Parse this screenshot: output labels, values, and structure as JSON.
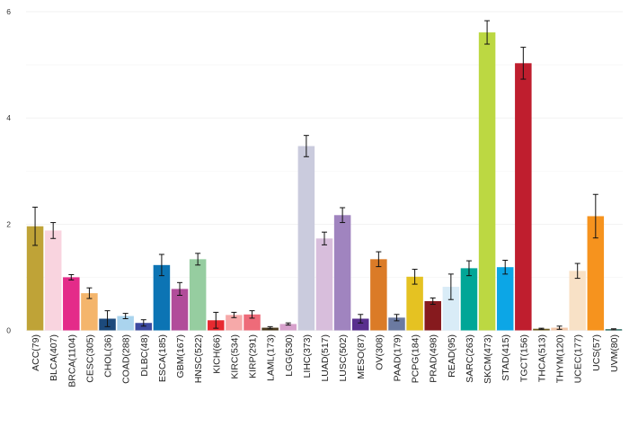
{
  "chart_data": {
    "type": "bar",
    "title": "",
    "xlabel": "",
    "ylabel": "",
    "ylim": [
      0,
      6.2
    ],
    "yticks": [
      0,
      2,
      4,
      6
    ],
    "grid": true,
    "legend": "none",
    "categories": [
      "ACC(79)",
      "BLCA(407)",
      "BRCA(1104)",
      "CESC(305)",
      "CHOL(36)",
      "COAD(288)",
      "DLBC(48)",
      "ESCA(185)",
      "GBM(167)",
      "HNSC(522)",
      "KICH(66)",
      "KIRC(534)",
      "KIRP(291)",
      "LAML(173)",
      "LGG(530)",
      "LIHC(373)",
      "LUAD(517)",
      "LUSC(502)",
      "MESO(87)",
      "OV(308)",
      "PAAD(179)",
      "PCPG(184)",
      "PRAD(498)",
      "READ(95)",
      "SARC(263)",
      "SKCM(473)",
      "STAD(415)",
      "TGCT(156)",
      "THCA(513)",
      "THYM(120)",
      "UCEC(177)",
      "UCS(57)",
      "UVM(80)"
    ],
    "values": [
      1.96,
      1.88,
      1.0,
      0.7,
      0.22,
      0.27,
      0.14,
      1.23,
      0.78,
      1.34,
      0.19,
      0.29,
      0.3,
      0.05,
      0.12,
      3.47,
      1.73,
      2.17,
      0.22,
      1.34,
      0.24,
      1.01,
      0.55,
      0.82,
      1.17,
      5.61,
      1.19,
      5.03,
      0.03,
      0.05,
      1.12,
      2.15,
      0.02
    ],
    "errors": [
      0.36,
      0.15,
      0.05,
      0.1,
      0.15,
      0.05,
      0.06,
      0.2,
      0.12,
      0.11,
      0.15,
      0.05,
      0.07,
      0.02,
      0.02,
      0.2,
      0.12,
      0.14,
      0.08,
      0.14,
      0.06,
      0.14,
      0.06,
      0.24,
      0.14,
      0.22,
      0.13,
      0.3,
      0.01,
      0.03,
      0.14,
      0.41,
      0.01
    ],
    "colors": [
      "#BFA337",
      "#F9D4DF",
      "#E42B89",
      "#F4B56C",
      "#1C4A7C",
      "#AAD4EE",
      "#3D4AA0",
      "#0C74B4",
      "#B14C9A",
      "#96CDA0",
      "#E72A30",
      "#F6A9A9",
      "#EE6B79",
      "#4B3A1E",
      "#D7A1CC",
      "#CACBDD",
      "#D8BEDC",
      "#A084BF",
      "#592F8E",
      "#DB7B27",
      "#6B7AA1",
      "#E5C222",
      "#861A1E",
      "#D9ECF7",
      "#00A697",
      "#BCD842",
      "#0CA6E6",
      "#BF1E2E",
      "#6D5B1E",
      "#F2C7A8",
      "#F8E1C6",
      "#F6931E",
      "#004E44"
    ]
  }
}
